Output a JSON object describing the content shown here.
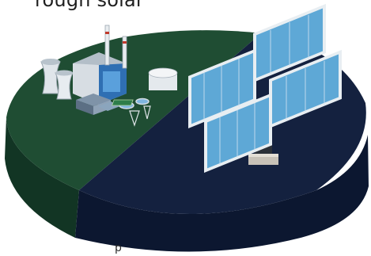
{
  "headline_fragment": "rough solar",
  "bottom_fragment": "p",
  "colors": {
    "conventional_slice": "#1f4d33",
    "solar_slice": "#14213f",
    "conventional_side": "#123524",
    "solar_side": "#0c1730",
    "panel_cell": "#5ea8d6",
    "panel_frame": "#e8eef2"
  },
  "diagram": {
    "type": "pie-3d",
    "slices": [
      {
        "label_icon": "power-plant-icon",
        "share": 0.35
      },
      {
        "label_icon": "solar-panel-icon",
        "share": 0.65
      }
    ]
  }
}
